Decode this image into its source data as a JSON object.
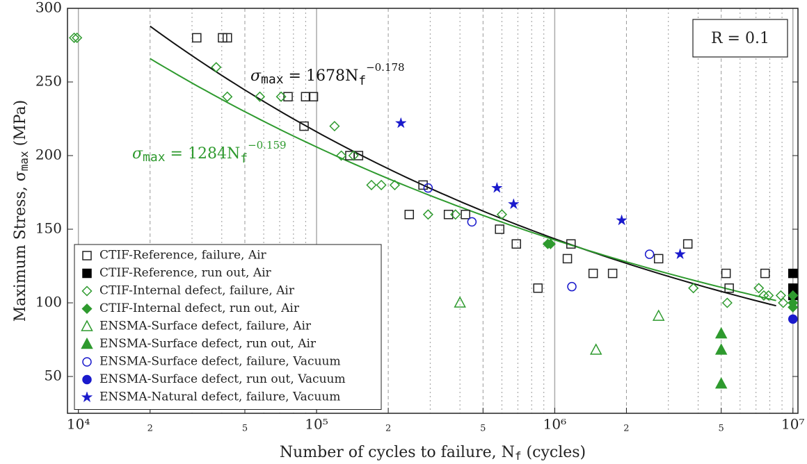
{
  "chart_data": {
    "type": "scatter",
    "xlabel": [
      "Number of cycles to failure, N",
      "f",
      " (cycles)"
    ],
    "ylabel": [
      "Maximum Stress, σ",
      "max",
      " (MPa)"
    ],
    "annotation": "R = 0.1",
    "log_x": true,
    "xlim": [
      9000,
      10500000
    ],
    "ylim": [
      25,
      300
    ],
    "xticks": [
      {
        "value": 10000,
        "label": "10⁴"
      },
      {
        "value": 20000,
        "label": "2"
      },
      {
        "value": 50000,
        "label": "5"
      },
      {
        "value": 100000,
        "label": "10⁵"
      },
      {
        "value": 200000,
        "label": "2"
      },
      {
        "value": 500000,
        "label": "5"
      },
      {
        "value": 1000000,
        "label": "10⁶"
      },
      {
        "value": 2000000,
        "label": "2"
      },
      {
        "value": 5000000,
        "label": "5"
      },
      {
        "value": 10000000,
        "label": "10⁷"
      }
    ],
    "x_minor_grid": [
      30000,
      40000,
      60000,
      70000,
      80000,
      90000,
      300000,
      400000,
      600000,
      700000,
      800000,
      900000,
      3000000,
      4000000,
      6000000,
      7000000,
      8000000,
      9000000
    ],
    "yticks": [
      50,
      100,
      150,
      200,
      250,
      300
    ],
    "grid": true,
    "legend": "lower left",
    "series": [
      {
        "name": "CTIF-Reference, failure, Air",
        "color": "#222222",
        "marker": "square",
        "filled": false,
        "x": [
          31400,
          40300,
          42200,
          75900,
          90000,
          97000,
          88600,
          138000,
          150000,
          280000,
          245000,
          358000,
          422000,
          587000,
          690000,
          850000,
          1130000,
          1170000,
          1450000,
          1750000,
          2730000,
          3620000,
          5240000,
          5400000,
          7640000
        ],
        "values": [
          280,
          280,
          280,
          240,
          240,
          240,
          220,
          200,
          200,
          180,
          160,
          160,
          160,
          150,
          140,
          110,
          130,
          140,
          120,
          120,
          130,
          140,
          120,
          110,
          120
        ]
      },
      {
        "name": "CTIF-Reference, run out, Air",
        "color": "#000000",
        "marker": "square",
        "filled": true,
        "x": [
          10000000,
          10000000,
          10000000
        ],
        "values": [
          120,
          110,
          105
        ]
      },
      {
        "name": "CTIF-Internal defect, failure, Air",
        "color": "#2e9a2e",
        "marker": "diamond",
        "filled": false,
        "x": [
          9600,
          9870,
          37900,
          42200,
          57800,
          71000,
          119000,
          127000,
          143000,
          170000,
          187000,
          213000,
          294000,
          383000,
          600000,
          3820000,
          5300000,
          7190000,
          7550000,
          7900000,
          9100000,
          8900000
        ],
        "values": [
          280,
          280,
          260,
          240,
          240,
          240,
          220,
          200,
          200,
          180,
          180,
          180,
          160,
          160,
          160,
          110,
          100,
          110,
          105,
          105,
          100,
          105
        ]
      },
      {
        "name": "CTIF-Internal defect, run out, Air",
        "color": "#2e9a2e",
        "marker": "diamond",
        "filled": true,
        "x": [
          935000,
          960000,
          10000000,
          10000000,
          10000000
        ],
        "values": [
          140,
          140,
          105,
          100,
          97
        ]
      },
      {
        "name": "ENSMA-Surface defect, failure, Air",
        "color": "#2e9a2e",
        "marker": "triangle",
        "filled": false,
        "x": [
          400000,
          1490000,
          2730000
        ],
        "values": [
          100,
          68,
          91
        ]
      },
      {
        "name": "ENSMA-Surface defect, run out, Air",
        "color": "#2e9a2e",
        "marker": "triangle",
        "filled": true,
        "x": [
          5000000,
          5000000,
          5000000
        ],
        "values": [
          79,
          68,
          45
        ]
      },
      {
        "name": "ENSMA-Surface defect, failure, Vacuum",
        "color": "#1a1acc",
        "marker": "circle",
        "filled": false,
        "x": [
          294000,
          449000,
          1180000,
          2500000
        ],
        "values": [
          178,
          155,
          111,
          133
        ]
      },
      {
        "name": "ENSMA-Surface defect, run out, Vacuum",
        "color": "#1a1acc",
        "marker": "circle",
        "filled": true,
        "x": [
          10000000
        ],
        "values": [
          89
        ]
      },
      {
        "name": "ENSMA-Natural defect, failure, Vacuum",
        "color": "#1a1acc",
        "marker": "star",
        "filled": true,
        "x": [
          226000,
          572000,
          672000,
          1910000,
          3360000
        ],
        "values": [
          222,
          178,
          167,
          156,
          133
        ]
      }
    ],
    "fits": [
      {
        "coefficient": 1678,
        "exponent": -0.178,
        "color": "#111111",
        "x_range": [
          20000,
          8500000
        ],
        "label": [
          "σ",
          "max",
          " = 1678N",
          "f",
          "−0.178"
        ]
      },
      {
        "coefficient": 1284,
        "exponent": -0.159,
        "color": "#2e9a2e",
        "x_range": [
          20000,
          8500000
        ],
        "label": [
          "σ",
          "max",
          " = 1284N",
          "f",
          "−0.159"
        ]
      }
    ]
  }
}
